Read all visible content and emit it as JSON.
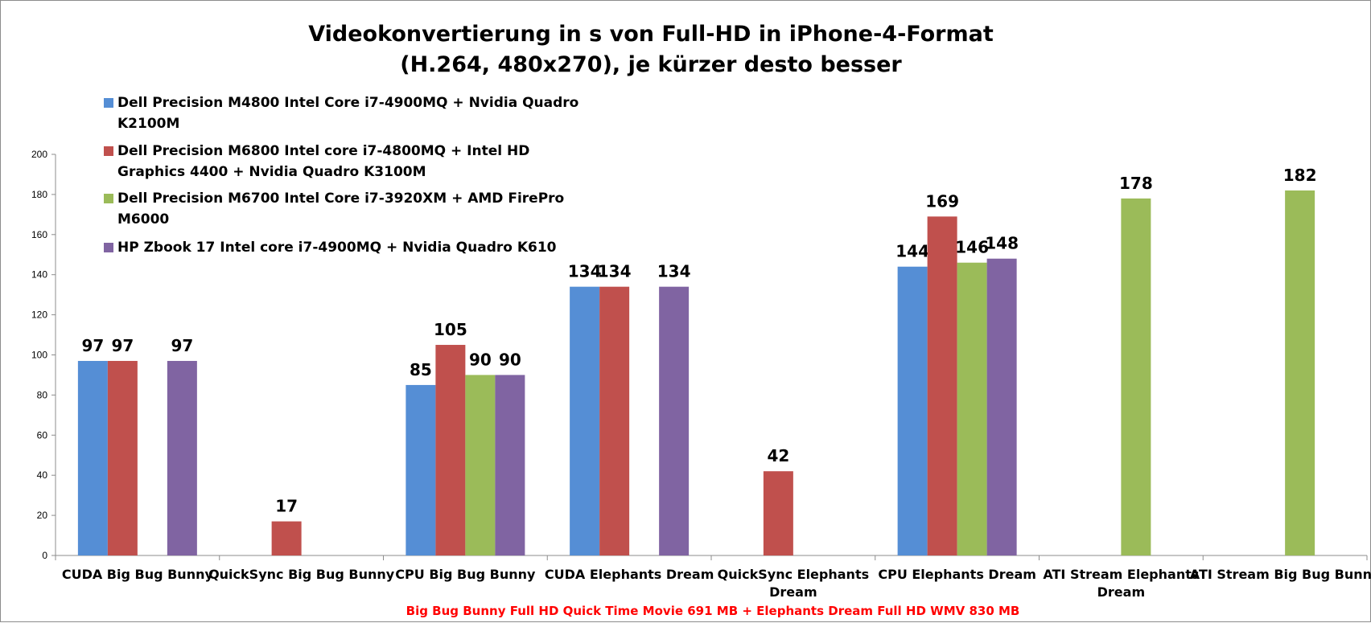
{
  "chart_data": {
    "type": "bar",
    "title_lines": [
      "Videokonvertierung in s von Full-HD in iPhone-4-Format",
      "(H.264, 480x270), je kürzer desto besser"
    ],
    "categories": [
      [
        "CUDA Big Bug Bunny"
      ],
      [
        "QuickSync Big Bug Bunny"
      ],
      [
        "CPU Big Bug Bunny"
      ],
      [
        "CUDA Elephants Dream"
      ],
      [
        "QuickSync Elephants",
        "Dream"
      ],
      [
        "CPU Elephants Dream"
      ],
      [
        "ATI Stream Elephants",
        "Dream"
      ],
      [
        "ATI Stream Big Bug Bunny"
      ]
    ],
    "series": [
      {
        "name": "Dell Precision  M4800 Intel Core i7-4900MQ + Nvidia  Quadro K2100M",
        "legend_lines": [
          "Dell Precision  M4800 Intel Core i7-4900MQ + Nvidia  Quadro",
          "K2100M"
        ],
        "color": "#558ed5",
        "values": [
          97,
          null,
          85,
          134,
          null,
          144,
          null,
          null
        ]
      },
      {
        "name": "Dell Precision  M6800 Intel core i7-4800MQ + Intel HD Graphics 4400 + Nvidia Quadro K3100M",
        "legend_lines": [
          "Dell Precision  M6800 Intel core i7-4800MQ + Intel HD",
          "Graphics 4400 + Nvidia Quadro K3100M"
        ],
        "color": "#c0504d",
        "values": [
          97,
          17,
          105,
          134,
          42,
          169,
          null,
          null
        ]
      },
      {
        "name": "Dell Precision  M6700 Intel Core i7-3920XM + AMD FirePro M6000",
        "legend_lines": [
          "Dell Precision  M6700 Intel Core i7-3920XM + AMD FirePro",
          "M6000"
        ],
        "color": "#9bbb59",
        "values": [
          null,
          null,
          90,
          null,
          null,
          146,
          178,
          182
        ]
      },
      {
        "name": "HP Zbook 17 Intel core i7-4900MQ + Nvidia  Quadro K610",
        "legend_lines": [
          "HP Zbook 17 Intel core i7-4900MQ + Nvidia  Quadro K610"
        ],
        "color": "#8064a2",
        "values": [
          97,
          null,
          90,
          134,
          null,
          148,
          null,
          null
        ]
      }
    ],
    "ylim": [
      0,
      200
    ],
    "yticks": [
      0,
      20,
      40,
      60,
      80,
      100,
      120,
      140,
      160,
      180,
      200
    ],
    "grid": false,
    "legend_position": "top-left",
    "footnote": "Big Bug Bunny Full HD Quick Time Movie 691 MB + Elephants Dream Full HD WMV 830 MB",
    "footnote_color": "#ff0000"
  }
}
